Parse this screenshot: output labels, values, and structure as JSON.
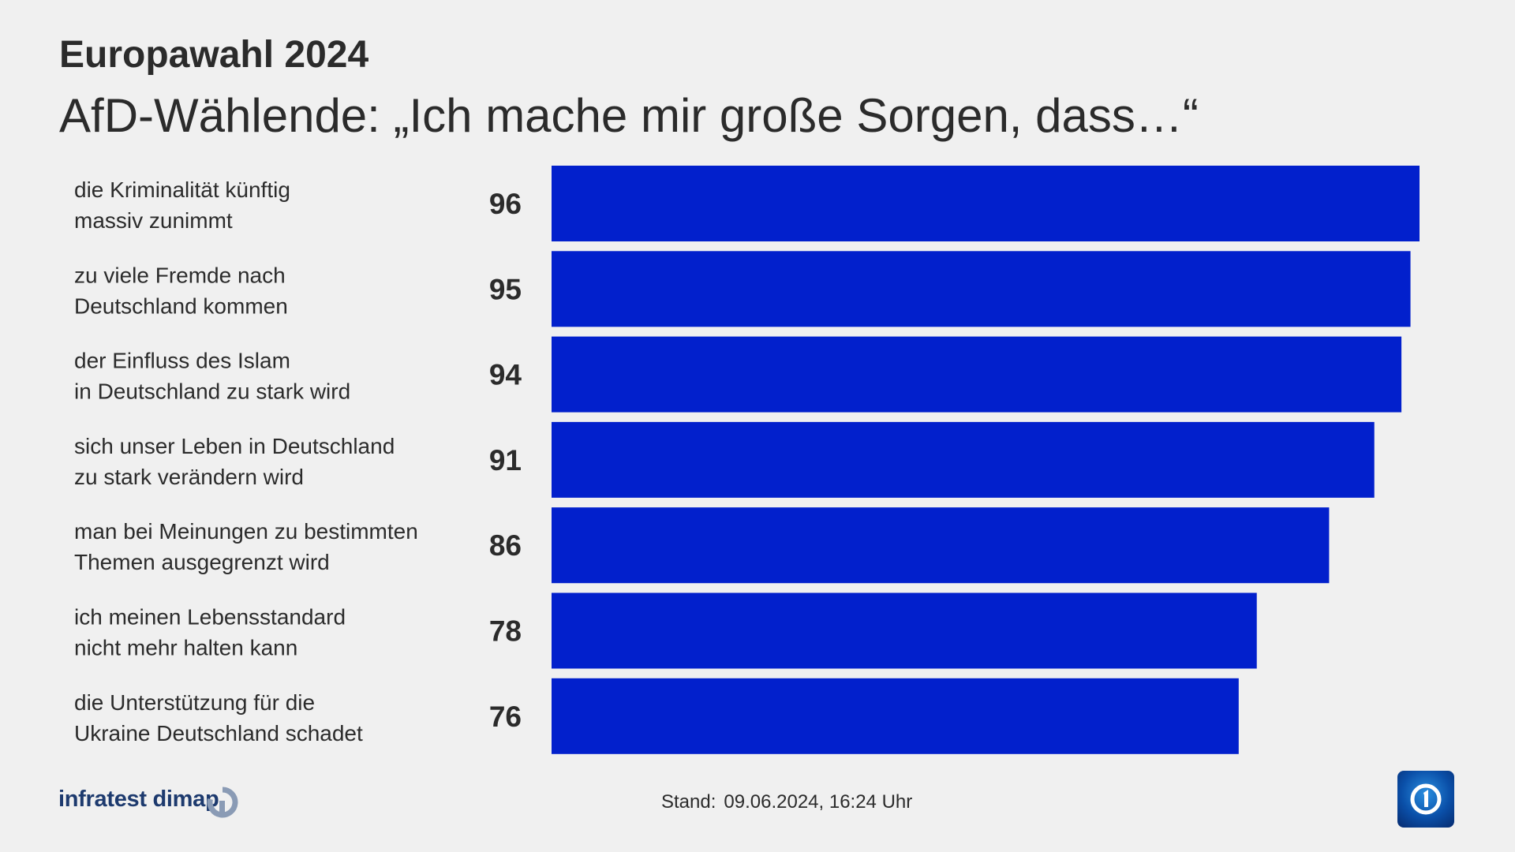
{
  "header": {
    "supertitle": "Europawahl 2024",
    "title": "AfD-Wählende: „Ich mache mir große Sorgen, dass…“"
  },
  "chart_data": {
    "type": "bar",
    "orientation": "horizontal",
    "categories": [
      [
        "die Kriminalität künftig",
        "massiv zunimmt"
      ],
      [
        "zu viele Fremde nach",
        "Deutschland kommen"
      ],
      [
        "der Einfluss des Islam",
        "in Deutschland zu stark wird"
      ],
      [
        "sich unser Leben in Deutschland",
        "zu stark verändern wird"
      ],
      [
        "man bei Meinungen zu bestimmten",
        "Themen ausgegrenzt wird"
      ],
      [
        "ich meinen Lebensstandard",
        "nicht mehr halten kann"
      ],
      [
        "die Unterstützung für die",
        "Ukraine Deutschland schadet"
      ]
    ],
    "values": [
      96,
      95,
      94,
      91,
      86,
      78,
      76
    ],
    "xlim": [
      0,
      96
    ],
    "bar_color": "#0220cc",
    "grid": false,
    "legend": "none"
  },
  "footer": {
    "source_logo_text": "infratest dimap",
    "stand_label": "Stand:",
    "stand_value": "09.06.2024, 16:24 Uhr"
  },
  "colors": {
    "background": "#f0f0f0",
    "bar": "#0220cc",
    "text": "#2b2b2b",
    "logo_text": "#1d3a6e"
  },
  "icons": {
    "source_logo": "infratest-dimap-logo-icon",
    "broadcaster_logo": "tagesschau-logo-icon"
  }
}
